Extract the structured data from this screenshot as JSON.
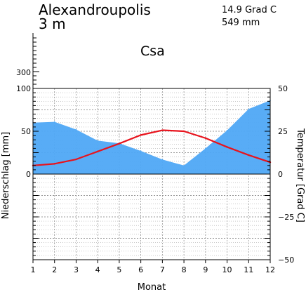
{
  "header": {
    "station": "Alexandroupolis",
    "elevation": "3 m",
    "mean_temperature": "14.9 Grad C",
    "annual_precipitation": "549 mm",
    "climate_class": "Csa"
  },
  "chart_data": {
    "type": "area",
    "xlabel": "Monat",
    "ylabel_left": "Niederschlag [mm]",
    "ylabel_right": "Temperatur [Grad C]",
    "x": [
      1,
      2,
      3,
      4,
      5,
      6,
      7,
      8,
      9,
      10,
      11,
      12
    ],
    "x_ticks": [
      "1",
      "2",
      "3",
      "4",
      "5",
      "6",
      "7",
      "8",
      "9",
      "10",
      "11",
      "12"
    ],
    "y_left_ticks": [
      "300",
      "100",
      "50",
      "0"
    ],
    "y_right_ticks": [
      "50",
      "25",
      "0",
      "−25",
      "−50"
    ],
    "precip_ylim": [
      -100,
      100
    ],
    "temp_ylim": [
      -50,
      50
    ],
    "grid": true,
    "series": [
      {
        "kind": "area",
        "values": [
          60,
          61,
          52,
          39,
          36,
          27,
          17,
          10,
          30,
          51,
          76,
          86
        ],
        "color": "#4fa8f5"
      },
      {
        "kind": "line",
        "values": [
          5.0,
          6.0,
          8.6,
          13.2,
          17.8,
          22.8,
          25.6,
          25.0,
          21.0,
          15.8,
          11.1,
          6.9
        ],
        "color": "#e8131d"
      }
    ]
  }
}
